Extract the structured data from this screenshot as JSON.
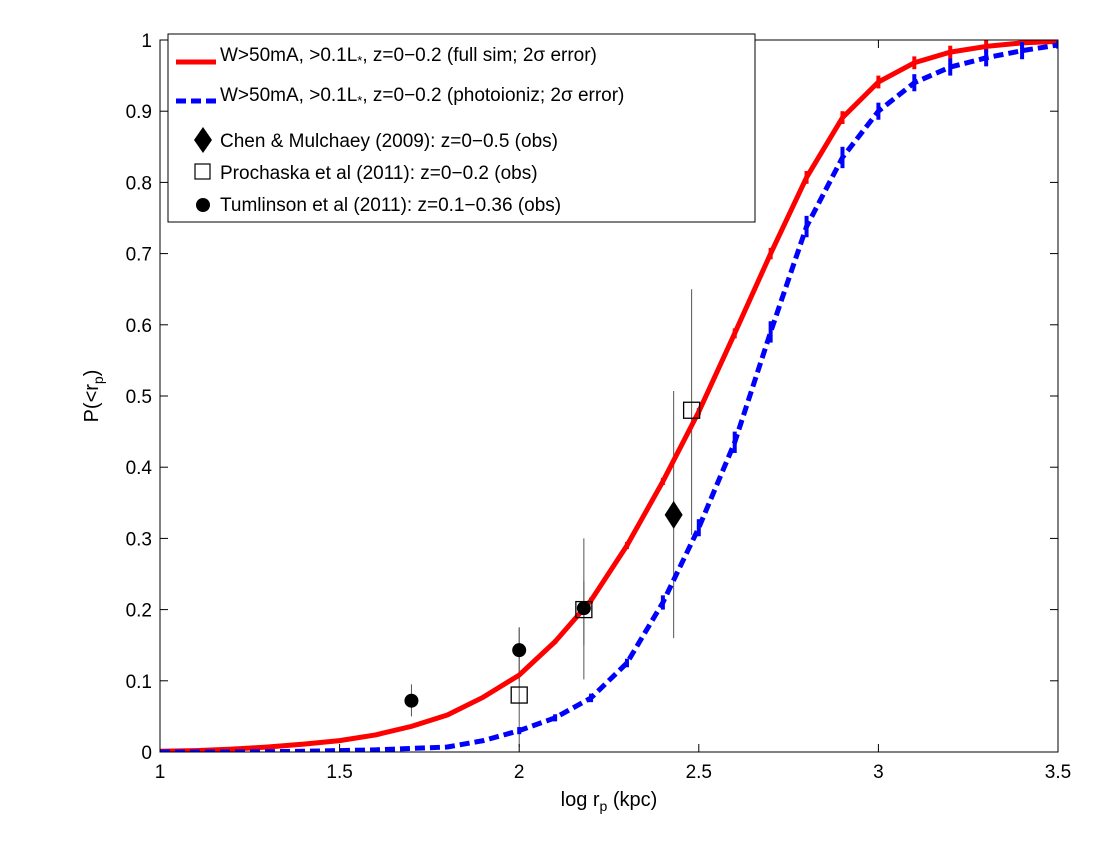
{
  "chart_data": {
    "type": "line",
    "xlabel": "log r_p (kpc)",
    "ylabel": "P(<r_p)",
    "xlim": [
      1,
      3.5
    ],
    "ylim": [
      0,
      1
    ],
    "xticks": [
      1,
      1.5,
      2,
      2.5,
      3,
      3.5
    ],
    "xtick_labels": [
      "1",
      "1.5",
      "2",
      "2.5",
      "3",
      "3.5"
    ],
    "yticks": [
      0,
      0.1,
      0.2,
      0.3,
      0.4,
      0.5,
      0.6,
      0.7,
      0.8,
      0.9,
      1
    ],
    "ytick_labels": [
      "0",
      "0.1",
      "0.2",
      "0.3",
      "0.4",
      "0.5",
      "0.6",
      "0.7",
      "0.8",
      "0.9",
      "1"
    ],
    "legend_position": "top-left",
    "series": [
      {
        "name": "W>50mA, >0.1L*, z=0-0.2 (full sim; 2σ error)",
        "style": "solid",
        "color": "#ff0000",
        "x": [
          1.0,
          1.1,
          1.2,
          1.3,
          1.4,
          1.5,
          1.6,
          1.7,
          1.8,
          1.9,
          2.0,
          2.1,
          2.2,
          2.3,
          2.4,
          2.5,
          2.6,
          2.7,
          2.8,
          2.9,
          3.0,
          3.1,
          3.2,
          3.3,
          3.4,
          3.5
        ],
        "y": [
          0.001,
          0.002,
          0.004,
          0.007,
          0.011,
          0.016,
          0.024,
          0.036,
          0.052,
          0.077,
          0.108,
          0.155,
          0.213,
          0.29,
          0.38,
          0.478,
          0.588,
          0.7,
          0.807,
          0.891,
          0.941,
          0.968,
          0.983,
          0.991,
          0.996,
          0.998
        ],
        "err": [
          0,
          0,
          0,
          0,
          0,
          0,
          0,
          0,
          0,
          0,
          0,
          0.003,
          0.004,
          0.005,
          0.005,
          0.005,
          0.007,
          0.008,
          0.009,
          0.009,
          0.009,
          0.009,
          0.009,
          0.009,
          0.009,
          0.005
        ]
      },
      {
        "name": "W>50mA, >0.1L*, z=0-0.2 (photoioniz; 2σ error)",
        "style": "dashed",
        "color": "#0000ff",
        "x": [
          1.0,
          1.2,
          1.4,
          1.6,
          1.8,
          1.9,
          2.0,
          2.1,
          2.2,
          2.3,
          2.4,
          2.5,
          2.6,
          2.7,
          2.8,
          2.9,
          3.0,
          3.1,
          3.2,
          3.3,
          3.4,
          3.5
        ],
        "y": [
          0.0,
          0.0,
          0.001,
          0.003,
          0.007,
          0.016,
          0.03,
          0.048,
          0.076,
          0.125,
          0.21,
          0.315,
          0.435,
          0.59,
          0.738,
          0.835,
          0.9,
          0.94,
          0.962,
          0.975,
          0.985,
          0.993
        ],
        "err": [
          0,
          0,
          0,
          0,
          0,
          0,
          0.005,
          0.005,
          0.006,
          0.006,
          0.01,
          0.012,
          0.015,
          0.015,
          0.015,
          0.015,
          0.012,
          0.012,
          0.012,
          0.012,
          0.012,
          0.005
        ]
      }
    ],
    "points": [
      {
        "name": "Chen & Mulchaey (2009): z=0-0.5 (obs)",
        "marker": "diamond",
        "data": [
          {
            "x": 2.43,
            "y": 0.333
          }
        ]
      },
      {
        "name": "Prochaska et al (2011): z=0-0.2 (obs)",
        "marker": "square",
        "data": [
          {
            "x": 2.0,
            "y": 0.08,
            "ylo": 0.007,
            "yhi": 0.175
          },
          {
            "x": 2.18,
            "y": 0.2,
            "ylo": 0.102,
            "yhi": 0.3
          },
          {
            "x": 2.48,
            "y": 0.48,
            "ylo": 0.305,
            "yhi": 0.65
          }
        ]
      },
      {
        "name": "Tumlinson et al (2011): z=0.1-0.36 (obs)",
        "marker": "circle",
        "data": [
          {
            "x": 1.7,
            "y": 0.072,
            "ylo": 0.05,
            "yhi": 0.095
          },
          {
            "x": 2.0,
            "y": 0.143,
            "ylo": 0.1,
            "yhi": 0.175
          },
          {
            "x": 2.18,
            "y": 0.202,
            "ylo": 0.15,
            "yhi": 0.24
          },
          {
            "x": 2.43,
            "y": 0.333,
            "ylo": 0.16,
            "yhi": 0.507
          }
        ]
      }
    ],
    "legend": [
      {
        "key": "red-line",
        "text": "W>50mA, >0.1L*, z=0−0.2 (full sim; 2σ error)"
      },
      {
        "key": "blue-dash",
        "text": "W>50mA, >0.1L*, z=0−0.2 (photoioniz; 2σ error)"
      },
      {
        "key": "diamond",
        "text": "Chen & Mulchaey (2009): z=0−0.5 (obs)"
      },
      {
        "key": "square",
        "text": "Prochaska et al (2011): z=0−0.2 (obs)"
      },
      {
        "key": "circle",
        "text": "Tumlinson et al (2011): z=0.1−0.36 (obs)"
      }
    ]
  }
}
